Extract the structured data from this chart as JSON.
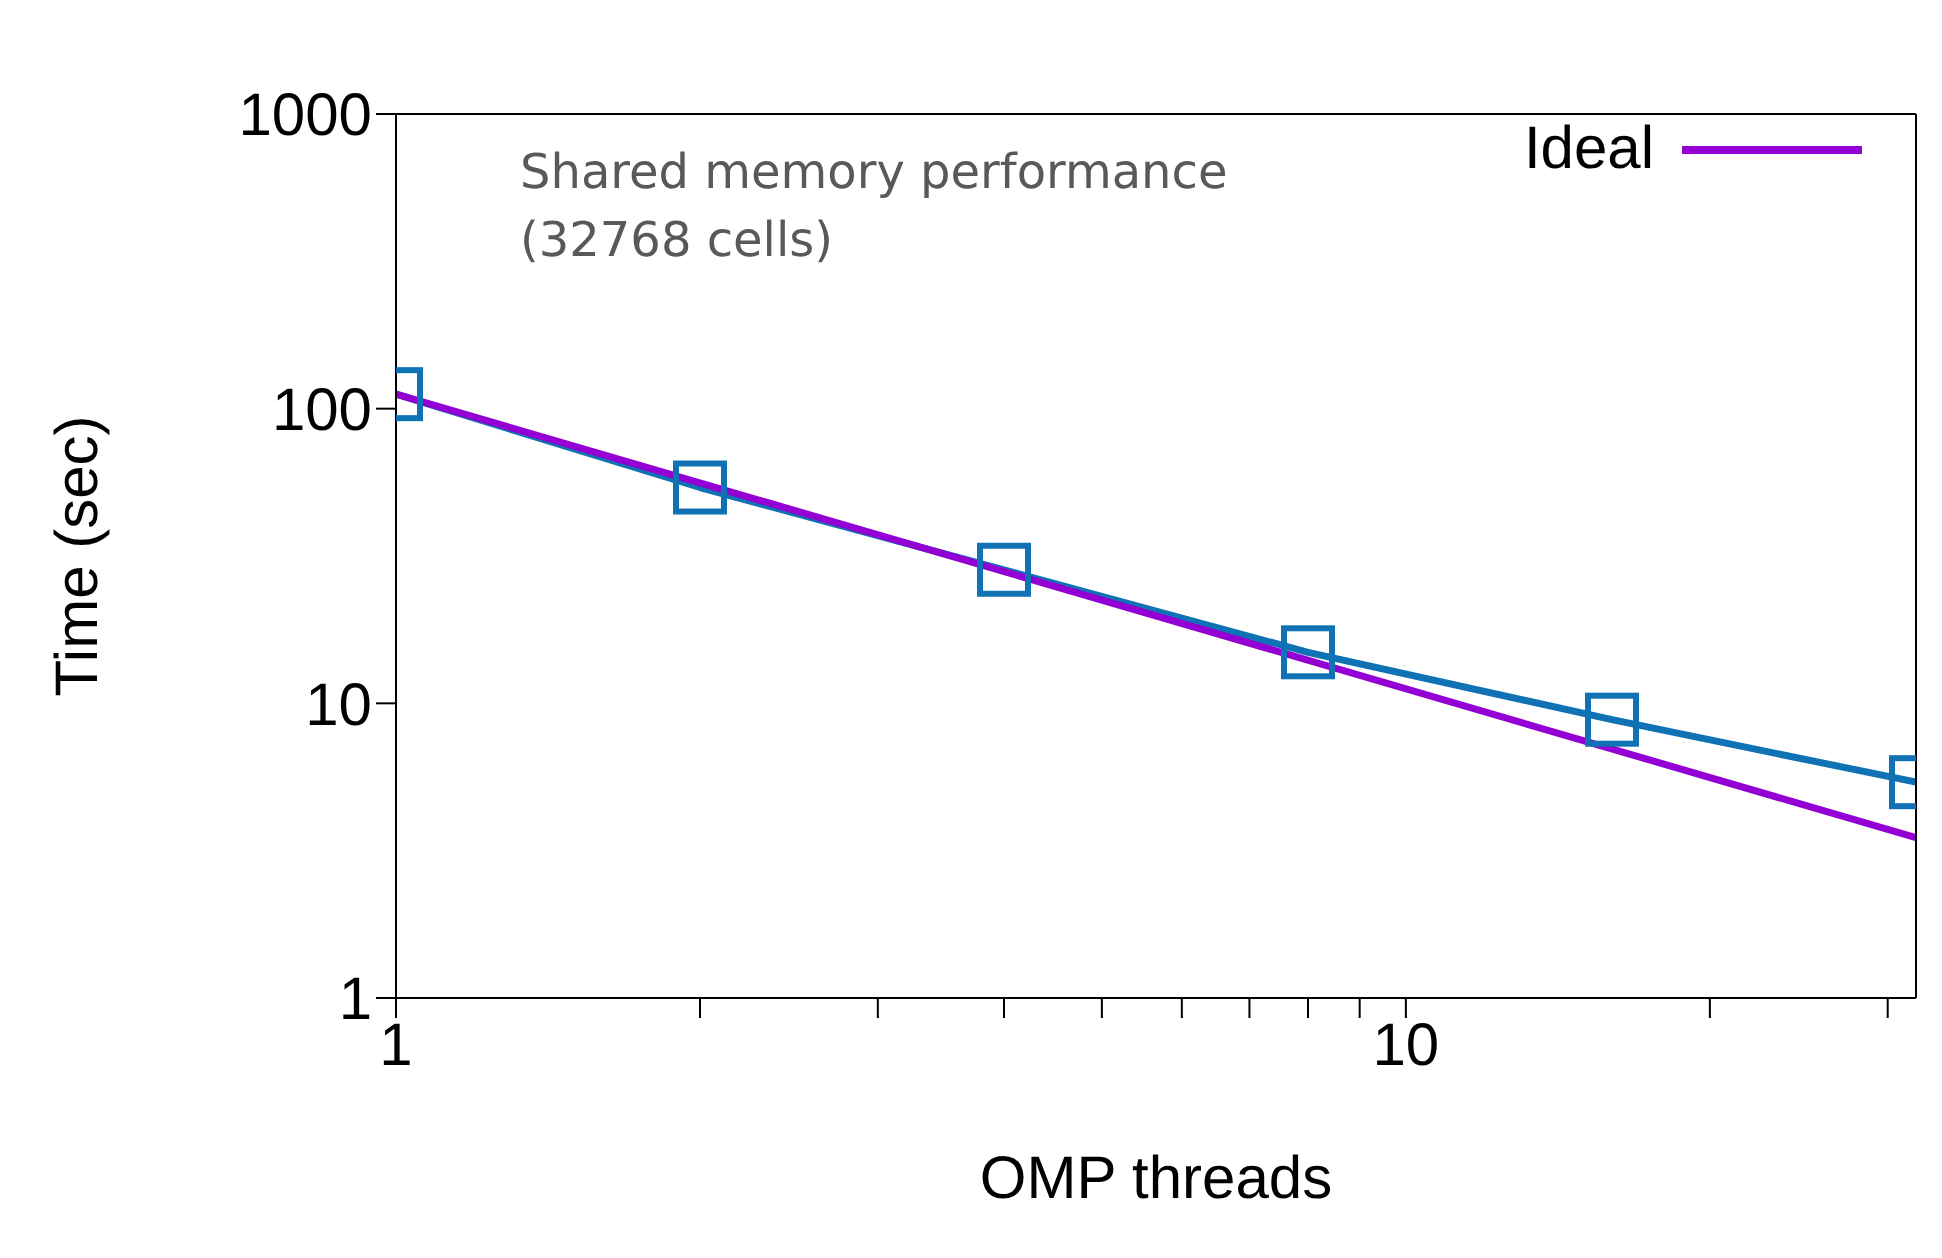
{
  "chart_data": {
    "type": "line",
    "xlabel": "OMP threads",
    "ylabel": "Time (sec)",
    "annotations": [
      "Shared memory performance (32768 cells)"
    ],
    "x": [
      1,
      2,
      4,
      8,
      16,
      32
    ],
    "series": [
      {
        "color": "#0f72b5",
        "values": [
          112,
          54,
          28.4,
          14.9,
          8.8,
          5.4
        ],
        "marker": "square"
      },
      {
        "name": "Ideal",
        "color": "#9400d3",
        "x": [
          1,
          32
        ],
        "values": [
          112,
          3.5
        ],
        "marker": "none"
      }
    ],
    "log": "xy",
    "xlim": [
      1,
      32
    ],
    "ylim": [
      1,
      1000
    ],
    "xticks": [
      1,
      {
        "value": 2,
        "label": null
      },
      {
        "value": 3,
        "label": null
      },
      {
        "value": 4,
        "label": null
      },
      {
        "value": 5,
        "label": null
      },
      {
        "value": 6,
        "label": null
      },
      {
        "value": 7,
        "label": null
      },
      {
        "value": 8,
        "label": null
      },
      {
        "value": 9,
        "label": null
      },
      10,
      {
        "value": 20,
        "label": null
      },
      {
        "value": 30,
        "label": null
      }
    ],
    "yticks": [
      1,
      10,
      100,
      1000
    ],
    "legend": "top right"
  }
}
